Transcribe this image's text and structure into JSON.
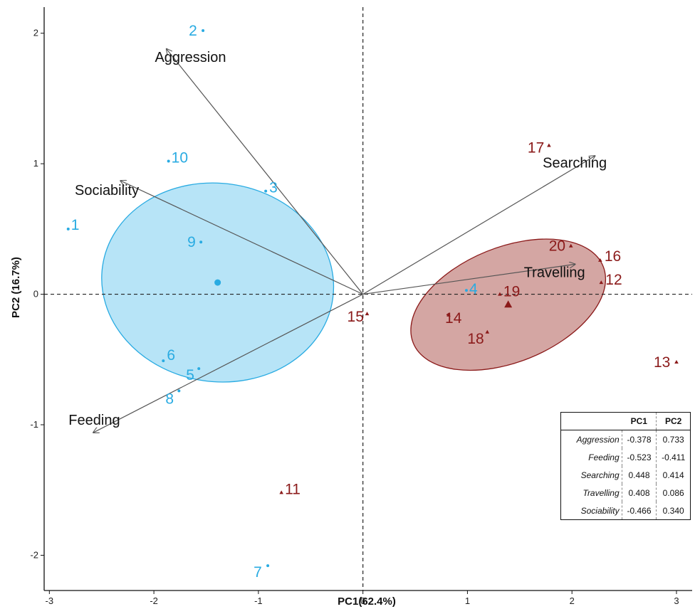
{
  "chart_data": {
    "type": "scatter",
    "xlabel": "PC1(62.4%)",
    "ylabel": "PC2 (16.7%)",
    "xlim": [
      -3.05,
      3.15
    ],
    "ylim": [
      -2.27,
      2.2
    ],
    "xticks": [
      "-3",
      "-2",
      "-1",
      "0",
      "1",
      "2",
      "3"
    ],
    "yticks": [
      "-2",
      "-1",
      "0",
      "1",
      "2"
    ],
    "reference_lines": "dashed lines at x=0 and y=0",
    "group_colors": {
      "blue": "#29abe2",
      "red": "#8b1a1a",
      "blue_fill": "#b3e3f7",
      "red_fill": "#c9908c"
    },
    "groups": [
      {
        "color": "#29abe2",
        "marker": "circle",
        "centroid": [
          -1.39,
          0.09
        ],
        "ellipse": {
          "cx": -1.39,
          "cy": 0.09,
          "rx": 0.95,
          "ry": 0.89,
          "angle": 82
        },
        "points": [
          {
            "label": "1",
            "x": -2.82,
            "y": 0.5
          },
          {
            "label": "2",
            "x": -1.53,
            "y": 2.02
          },
          {
            "label": "3",
            "x": -0.93,
            "y": 0.79
          },
          {
            "label": "4",
            "x": 0.99,
            "y": 0.03
          },
          {
            "label": "5",
            "x": -1.57,
            "y": -0.57
          },
          {
            "label": "6",
            "x": -1.91,
            "y": -0.51
          },
          {
            "label": "7",
            "x": -0.91,
            "y": -2.08
          },
          {
            "label": "8",
            "x": -1.76,
            "y": -0.74
          },
          {
            "label": "9",
            "x": -1.55,
            "y": 0.4
          },
          {
            "label": "10",
            "x": -1.86,
            "y": 1.02
          }
        ]
      },
      {
        "color": "#8b1a1a",
        "marker": "triangle",
        "centroid": [
          1.39,
          -0.08
        ],
        "ellipse": {
          "cx": 1.39,
          "cy": -0.08,
          "rx": 0.98,
          "ry": 0.44,
          "angle": 22
        },
        "points": [
          {
            "label": "11",
            "x": -0.78,
            "y": -1.52
          },
          {
            "label": "12",
            "x": 2.28,
            "y": 0.09
          },
          {
            "label": "13",
            "x": 3.0,
            "y": -0.52
          },
          {
            "label": "14",
            "x": 0.82,
            "y": -0.16
          },
          {
            "label": "15",
            "x": 0.04,
            "y": -0.15
          },
          {
            "label": "16",
            "x": 2.27,
            "y": 0.26
          },
          {
            "label": "17",
            "x": 1.78,
            "y": 1.14
          },
          {
            "label": "18",
            "x": 1.19,
            "y": -0.29
          },
          {
            "label": "19",
            "x": 1.31,
            "y": 0.0
          },
          {
            "label": "20",
            "x": 1.99,
            "y": 0.37
          }
        ]
      }
    ],
    "vectors": [
      {
        "name": "Aggression",
        "x": -1.88,
        "y": 1.88
      },
      {
        "name": "Sociability",
        "x": -2.32,
        "y": 0.87
      },
      {
        "name": "Feeding",
        "x": -2.58,
        "y": -1.06
      },
      {
        "name": "Searching",
        "x": 2.22,
        "y": 1.06
      },
      {
        "name": "Travelling",
        "x": 2.03,
        "y": 0.23
      }
    ],
    "loadings_table": {
      "columns": [
        "",
        "PC1",
        "PC2"
      ],
      "rows": [
        {
          "name": "Aggression",
          "pc1": "-0.378",
          "pc2": "0.733"
        },
        {
          "name": "Feeding",
          "pc1": "-0.523",
          "pc2": "-0.411"
        },
        {
          "name": "Searching",
          "pc1": "0.448",
          "pc2": "0.414"
        },
        {
          "name": "Travelling",
          "pc1": "0.408",
          "pc2": "0.086"
        },
        {
          "name": "Sociability",
          "pc1": "-0.466",
          "pc2": "0.340"
        }
      ]
    }
  }
}
